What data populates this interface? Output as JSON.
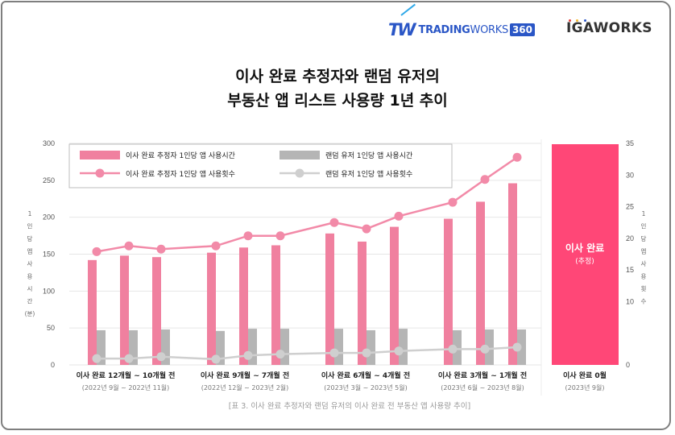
{
  "logos": {
    "tradingworks": {
      "mark": "TW",
      "word_bold": "TRADING",
      "word_light": "WORKS",
      "badge": "360"
    },
    "igaworks": {
      "text": "IGAWORKS",
      "dot_colors": [
        "#e8413c",
        "#f5b82e",
        "#2a56c6"
      ]
    }
  },
  "title": {
    "line1": "이사 완료 추정자와 랜덤 유저의",
    "line2": "부동산 앱 리스트 사용량 1년 추이"
  },
  "caption": "[표 3. 이사 완료 추정자와 랜덤 유저의 이사 완료 전 부동산 앱 사용량 추이]",
  "colors": {
    "pink_bar": "#f0809f",
    "gray_bar": "#b5b5b5",
    "pink_line": "#f28aa8",
    "gray_line": "#cfcfcf",
    "highlight": "#ff4777",
    "grid": "#e6e6e6"
  },
  "chart_data": {
    "type": "bar",
    "title": "이사 완료 추정자와 랜덤 유저의 부동산 앱 리스트 사용량 1년 추이",
    "left_axis": {
      "label": "1인당 앱 사용시간(분)",
      "label_chars": [
        "1",
        "인",
        "당",
        "앱",
        "사",
        "용",
        "시",
        "간",
        "(분)"
      ],
      "range": [
        0,
        300
      ],
      "ticks": [
        "300",
        "250",
        "200",
        "150",
        "100",
        "50",
        "0"
      ]
    },
    "right_axis": {
      "label": "1인당 앱 사용횟수",
      "label_chars": [
        "1",
        "인",
        "당",
        "앱",
        "사",
        "용",
        "횟",
        "수"
      ],
      "range": [
        0,
        35
      ],
      "ticks": [
        "35",
        "30",
        "25",
        "20",
        "15",
        "10",
        "0"
      ],
      "tick_values": [
        35,
        30,
        25,
        20,
        15,
        10,
        0
      ]
    },
    "grid": true,
    "legend_position": "top-left",
    "groups": [
      {
        "label": "이사 완료 12개월 ~ 10개월 전",
        "sub": "(2022년 9월 ~ 2022년 11월)"
      },
      {
        "label": "이사 완료 9개월 ~ 7개월 전",
        "sub": "(2022년 12월 ~ 2023년 2월)"
      },
      {
        "label": "이사 완료 6개월 ~ 4개월 전",
        "sub": "(2023년 3월 ~ 2023년 5월)"
      },
      {
        "label": "이사 완료 3개월 ~ 1개월 전",
        "sub": "(2023년 6월 ~ 2023년 8월)"
      },
      {
        "label": "이사 완료 0월",
        "sub": "(2023년 9월)"
      }
    ],
    "x": [
      "2022-09",
      "2022-10",
      "2022-11",
      "2022-12",
      "2023-01",
      "2023-02",
      "2023-03",
      "2023-04",
      "2023-05",
      "2023-06",
      "2023-07",
      "2023-08"
    ],
    "series": [
      {
        "name": "이사 완료 추정자 1인당 앱 사용시간",
        "kind": "bar",
        "axis": "left",
        "values": [
          142,
          148,
          146,
          152,
          159,
          162,
          178,
          167,
          187,
          198,
          221,
          246
        ]
      },
      {
        "name": "랜덤 유저 1인당 앱 사용시간",
        "kind": "bar",
        "axis": "left",
        "values": [
          47,
          47,
          48,
          46,
          49,
          49,
          49,
          47,
          49,
          47,
          48,
          48
        ]
      },
      {
        "name": "이사 완료 추정자 1인당 앱 사용횟수",
        "kind": "line",
        "axis": "right",
        "values": [
          17.9,
          18.8,
          18.3,
          18.8,
          20.4,
          20.4,
          22.5,
          21.5,
          23.5,
          25.7,
          29.3,
          32.8
        ]
      },
      {
        "name": "랜덤 유저 1인당 앱 사용횟수",
        "kind": "line",
        "axis": "right",
        "values": [
          1.0,
          1.0,
          1.3,
          0.9,
          1.5,
          1.7,
          1.9,
          1.9,
          2.2,
          2.5,
          2.5,
          2.8
        ]
      }
    ],
    "highlight": {
      "label": "이사 완료",
      "sub": "(추정)",
      "period": "2023-09",
      "note": "full-height highlighted column"
    }
  }
}
